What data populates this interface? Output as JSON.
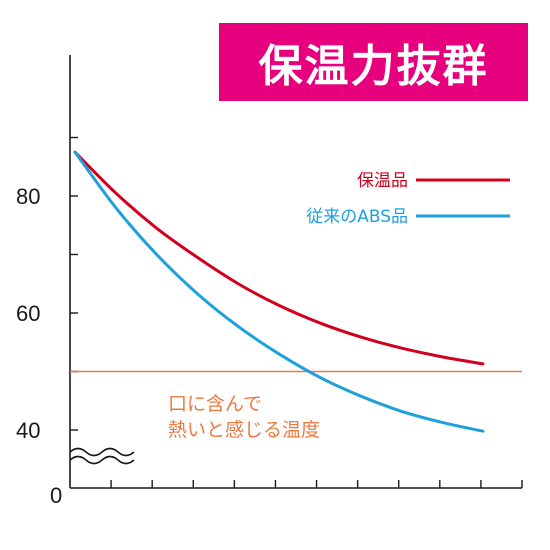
{
  "title": "保温力抜群",
  "colors": {
    "banner": "#e6007e",
    "insulated": "#d2001e",
    "abs": "#1ea0dc",
    "threshold": "#ec7a42",
    "axis": "#1a1a1a"
  },
  "annotation": {
    "line1": "口に含んで",
    "line2": "熱いと感じる温度"
  },
  "chart_data": {
    "type": "line",
    "title": "保温力抜群",
    "xlabel": "",
    "ylabel": "",
    "x_tick_count": 11,
    "y_ticks": [
      {
        "value": 40,
        "label": "40"
      },
      {
        "value": 50,
        "label": ""
      },
      {
        "value": 60,
        "label": "60"
      },
      {
        "value": 70,
        "label": ""
      },
      {
        "value": 80,
        "label": "80"
      },
      {
        "value": 90,
        "label": ""
      }
    ],
    "zero_label": "0",
    "axis_break": true,
    "ylim": [
      40,
      95
    ],
    "xlim": [
      0,
      11
    ],
    "grid": false,
    "legend_position": "top-right",
    "threshold": {
      "value": 50
    },
    "series": [
      {
        "name": "保温品",
        "color": "#d2001e",
        "x": [
          0,
          1,
          2,
          3,
          4,
          5,
          6,
          7,
          8,
          9,
          10
        ],
        "values": [
          87.5,
          80.5,
          74.5,
          69.5,
          65.0,
          61.3,
          58.3,
          55.9,
          54.0,
          52.5,
          51.3
        ]
      },
      {
        "name": "従来のABS品",
        "color": "#1ea0dc",
        "x": [
          0,
          1,
          2,
          3,
          4,
          5,
          6,
          7,
          8,
          9,
          10
        ],
        "values": [
          87.5,
          78.0,
          70.0,
          63.3,
          57.7,
          53.0,
          49.0,
          45.8,
          43.2,
          41.3,
          39.8
        ]
      }
    ]
  }
}
